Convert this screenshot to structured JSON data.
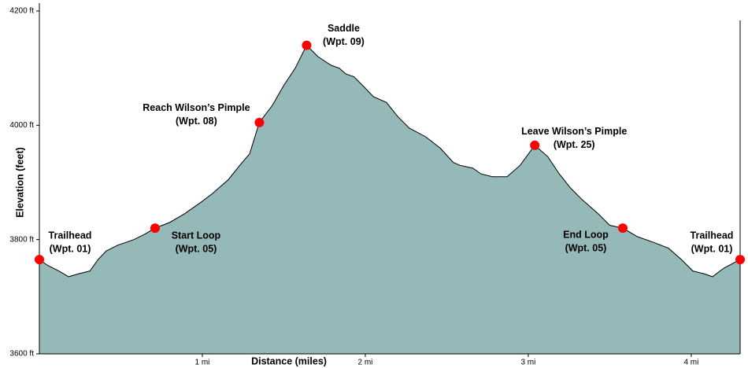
{
  "chart_data": {
    "type": "area",
    "xlabel": "Distance (miles)",
    "ylabel": "Elevation (feet)",
    "xlim": [
      0,
      4.3
    ],
    "ylim": [
      3600,
      4200
    ],
    "xticks": [
      {
        "value": 1,
        "label": "1 mi"
      },
      {
        "value": 2,
        "label": "2 mi"
      },
      {
        "value": 3,
        "label": "3 mi"
      },
      {
        "value": 4,
        "label": "4 mi"
      }
    ],
    "yticks": [
      {
        "value": 3600,
        "label": "3600 ft"
      },
      {
        "value": 3800,
        "label": "3800 ft"
      },
      {
        "value": 4000,
        "label": "4000 ft"
      },
      {
        "value": 4200,
        "label": "4200 ft"
      }
    ],
    "series": [
      {
        "color": "#95b8b8",
        "x": [
          0,
          0.05,
          0.12,
          0.18,
          0.24,
          0.31,
          0.36,
          0.41,
          0.48,
          0.58,
          0.65,
          0.71,
          0.8,
          0.89,
          0.99,
          1.06,
          1.16,
          1.23,
          1.29,
          1.35,
          1.43,
          1.5,
          1.57,
          1.64,
          1.71,
          1.79,
          1.84,
          1.88,
          1.93,
          2.0,
          2.05,
          2.13,
          2.2,
          2.27,
          2.37,
          2.46,
          2.54,
          2.58,
          2.66,
          2.71,
          2.78,
          2.87,
          2.95,
          3.04,
          3.12,
          3.19,
          3.26,
          3.33,
          3.43,
          3.5,
          3.58,
          3.67,
          3.77,
          3.86,
          3.94,
          4.01,
          4.08,
          4.13,
          4.2,
          4.3
        ],
        "values": [
          3765,
          3755,
          3745,
          3735,
          3740,
          3745,
          3765,
          3780,
          3790,
          3800,
          3810,
          3820,
          3830,
          3845,
          3865,
          3880,
          3905,
          3930,
          3950,
          4005,
          4035,
          4070,
          4100,
          4140,
          4120,
          4105,
          4100,
          4090,
          4085,
          4065,
          4050,
          4040,
          4015,
          3995,
          3980,
          3960,
          3935,
          3930,
          3925,
          3915,
          3910,
          3910,
          3930,
          3965,
          3945,
          3915,
          3890,
          3870,
          3845,
          3825,
          3820,
          3805,
          3795,
          3785,
          3765,
          3745,
          3740,
          3735,
          3750,
          3765
        ]
      }
    ],
    "waypoints": {
      "color": "#ff0000",
      "x": [
        0,
        0.71,
        1.35,
        1.64,
        3.04,
        3.58,
        4.3
      ],
      "values": [
        3765,
        3820,
        4005,
        4140,
        3965,
        3820,
        3765
      ],
      "names": [
        "Trailhead",
        "Start Loop",
        "Reach Wilson’s Pimple",
        "Saddle",
        "Leave Wilson’s Pimple",
        "End Loop",
        "Trailhead"
      ],
      "ids": [
        "(Wpt. 01)",
        "(Wpt. 05)",
        "(Wpt. 08)",
        "(Wpt. 09)",
        "(Wpt. 25)",
        "(Wpt. 05)",
        "(Wpt. 01)"
      ]
    }
  }
}
